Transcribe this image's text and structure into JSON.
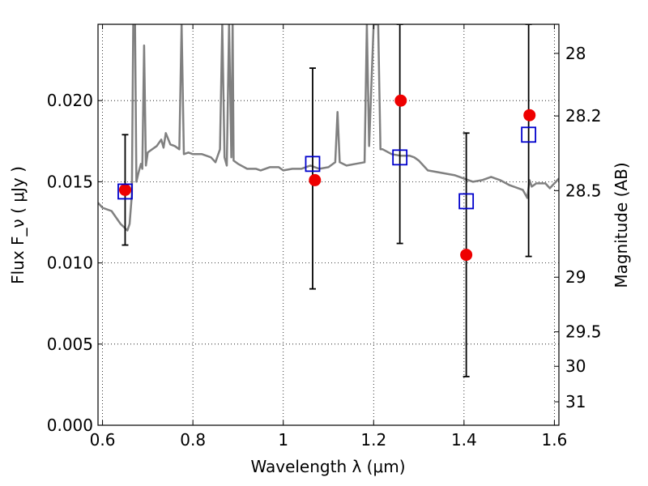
{
  "chart_data": {
    "type": "scatter",
    "title": "",
    "xlabel": "Wavelength  λ (μm)",
    "ylabel": "Flux  F_ν  ( μJy )",
    "ylabel_right": "Magnitude (AB)",
    "xlim": [
      0.59,
      1.61
    ],
    "ylim": [
      0.0,
      0.0247
    ],
    "grid": true,
    "grid_style": "dotted",
    "x_ticks": [
      0.6,
      0.8,
      1.0,
      1.2,
      1.4,
      1.6
    ],
    "x_tick_labels": [
      "0.6",
      "0.8",
      "1",
      "1.2",
      "1.4",
      "1.6"
    ],
    "y_ticks": [
      0.0,
      0.005,
      0.01,
      0.015,
      0.02
    ],
    "y_tick_labels": [
      "0.000",
      "0.005",
      "0.010",
      "0.015",
      "0.020"
    ],
    "right_ticks": [
      {
        "mag": 28,
        "label": "28"
      },
      {
        "mag": 28.2,
        "label": "28.2"
      },
      {
        "mag": 28.5,
        "label": "28.5"
      },
      {
        "mag": 29,
        "label": "29"
      },
      {
        "mag": 29.5,
        "label": "29.5"
      },
      {
        "mag": 30,
        "label": "30"
      },
      {
        "mag": 31,
        "label": "31"
      }
    ],
    "series": [
      {
        "marker": "square-open",
        "color": "#0000cc",
        "points": [
          {
            "x": 0.65,
            "y": 0.0144,
            "err_low": 0.0111,
            "err_high": 0.0179
          },
          {
            "x": 1.065,
            "y": 0.0161,
            "err_low": 0.0084,
            "err_high": 0.022
          },
          {
            "x": 1.258,
            "y": 0.0165,
            "err_low": 0.0112,
            "err_high": 0.0247
          },
          {
            "x": 1.405,
            "y": 0.0138,
            "err_low": 0.003,
            "err_high": 0.018
          },
          {
            "x": 1.543,
            "y": 0.0179,
            "err_low": 0.0104,
            "err_high": 0.0247
          }
        ]
      },
      {
        "marker": "circle-filled",
        "color": "#ee0000",
        "points": [
          {
            "x": 0.65,
            "y": 0.0145
          },
          {
            "x": 1.07,
            "y": 0.0151
          },
          {
            "x": 1.26,
            "y": 0.02
          },
          {
            "x": 1.405,
            "y": 0.0105
          },
          {
            "x": 1.545,
            "y": 0.0191
          }
        ]
      },
      {
        "marker": "line",
        "color": "#808080",
        "points": [
          [
            0.59,
            0.0137
          ],
          [
            0.6,
            0.0134
          ],
          [
            0.62,
            0.0132
          ],
          [
            0.64,
            0.0124
          ],
          [
            0.655,
            0.012
          ],
          [
            0.66,
            0.0124
          ],
          [
            0.665,
            0.0142
          ],
          [
            0.668,
            0.0247
          ],
          [
            0.672,
            0.0247
          ],
          [
            0.675,
            0.015
          ],
          [
            0.68,
            0.0156
          ],
          [
            0.685,
            0.0161
          ],
          [
            0.688,
            0.0158
          ],
          [
            0.692,
            0.0234
          ],
          [
            0.696,
            0.016
          ],
          [
            0.7,
            0.0168
          ],
          [
            0.71,
            0.017
          ],
          [
            0.72,
            0.0172
          ],
          [
            0.73,
            0.0176
          ],
          [
            0.735,
            0.0171
          ],
          [
            0.74,
            0.018
          ],
          [
            0.75,
            0.0173
          ],
          [
            0.76,
            0.0172
          ],
          [
            0.77,
            0.017
          ],
          [
            0.775,
            0.0247
          ],
          [
            0.78,
            0.0167
          ],
          [
            0.79,
            0.0168
          ],
          [
            0.8,
            0.0167
          ],
          [
            0.82,
            0.0167
          ],
          [
            0.84,
            0.0165
          ],
          [
            0.85,
            0.0162
          ],
          [
            0.86,
            0.017
          ],
          [
            0.865,
            0.0247
          ],
          [
            0.87,
            0.0165
          ],
          [
            0.875,
            0.016
          ],
          [
            0.88,
            0.0247
          ],
          [
            0.885,
            0.0165
          ],
          [
            0.888,
            0.0247
          ],
          [
            0.89,
            0.0163
          ],
          [
            0.9,
            0.0161
          ],
          [
            0.92,
            0.0158
          ],
          [
            0.94,
            0.0158
          ],
          [
            0.95,
            0.0157
          ],
          [
            0.97,
            0.0159
          ],
          [
            0.99,
            0.0159
          ],
          [
            1.0,
            0.0157
          ],
          [
            1.02,
            0.0158
          ],
          [
            1.04,
            0.0158
          ],
          [
            1.06,
            0.016
          ],
          [
            1.08,
            0.0158
          ],
          [
            1.1,
            0.0159
          ],
          [
            1.115,
            0.0162
          ],
          [
            1.12,
            0.0193
          ],
          [
            1.125,
            0.0162
          ],
          [
            1.14,
            0.016
          ],
          [
            1.16,
            0.0161
          ],
          [
            1.18,
            0.0162
          ],
          [
            1.185,
            0.0247
          ],
          [
            1.19,
            0.0172
          ],
          [
            1.2,
            0.0247
          ],
          [
            1.21,
            0.0247
          ],
          [
            1.215,
            0.017
          ],
          [
            1.22,
            0.017
          ],
          [
            1.24,
            0.0167
          ],
          [
            1.26,
            0.0166
          ],
          [
            1.28,
            0.0166
          ],
          [
            1.29,
            0.0165
          ],
          [
            1.3,
            0.0163
          ],
          [
            1.32,
            0.0157
          ],
          [
            1.34,
            0.0156
          ],
          [
            1.36,
            0.0155
          ],
          [
            1.38,
            0.0154
          ],
          [
            1.4,
            0.0152
          ],
          [
            1.42,
            0.015
          ],
          [
            1.44,
            0.0151
          ],
          [
            1.46,
            0.0153
          ],
          [
            1.48,
            0.0151
          ],
          [
            1.5,
            0.0148
          ],
          [
            1.52,
            0.0146
          ],
          [
            1.53,
            0.0145
          ],
          [
            1.54,
            0.014
          ],
          [
            1.545,
            0.0151
          ],
          [
            1.55,
            0.0147
          ],
          [
            1.56,
            0.0149
          ],
          [
            1.58,
            0.0149
          ],
          [
            1.59,
            0.0146
          ],
          [
            1.61,
            0.0152
          ]
        ]
      }
    ]
  }
}
